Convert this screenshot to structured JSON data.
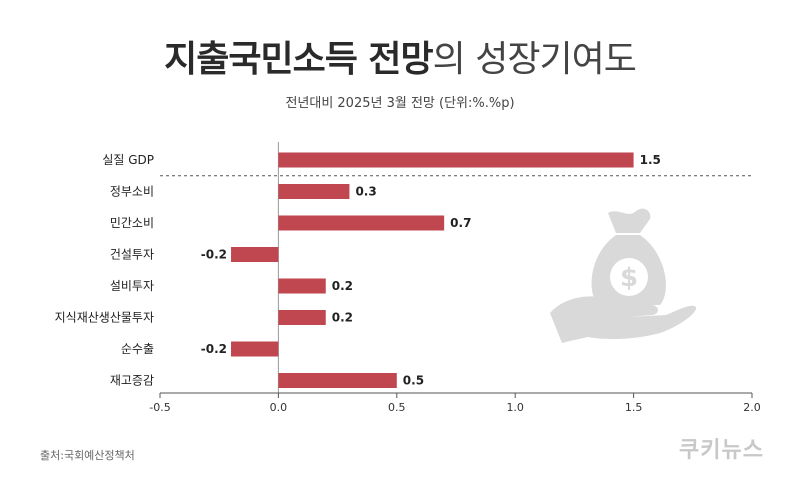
{
  "title_bold": "지출국민소득 전망",
  "title_light": "의 성장기여도",
  "subtitle": "전년대비 2025년 3월 전망 (단위:%.%p)",
  "source": "출처:국회예산정책처",
  "brand": "쿠키뉴스",
  "chart_data": {
    "type": "bar",
    "orientation": "horizontal",
    "title": "지출국민소득 전망의 성장기여도",
    "subtitle": "전년대비 2025년 3월 전망 (단위:%.%p)",
    "categories": [
      "실질 GDP",
      "정부소비",
      "민간소비",
      "건설투자",
      "설비투자",
      "지식재산생산물투자",
      "순수출",
      "재고증감"
    ],
    "values": [
      1.5,
      0.3,
      0.7,
      -0.2,
      0.2,
      0.2,
      -0.2,
      0.5
    ],
    "value_labels": [
      "1.5",
      "0.3",
      "0.7",
      "-0.2",
      "0.2",
      "0.2",
      "-0.2",
      "0.5"
    ],
    "xlim": [
      -0.5,
      2.0
    ],
    "xticks": [
      -0.5,
      0.0,
      0.5,
      1.0,
      1.5,
      2.0
    ],
    "xtick_labels": [
      "-0.5",
      "0.0",
      "0.5",
      "1.0",
      "1.5",
      "2.0"
    ],
    "bar_color": "#c0464f",
    "grid": false,
    "separator_after_first": true
  },
  "icon": "money-bag-on-hand-icon"
}
